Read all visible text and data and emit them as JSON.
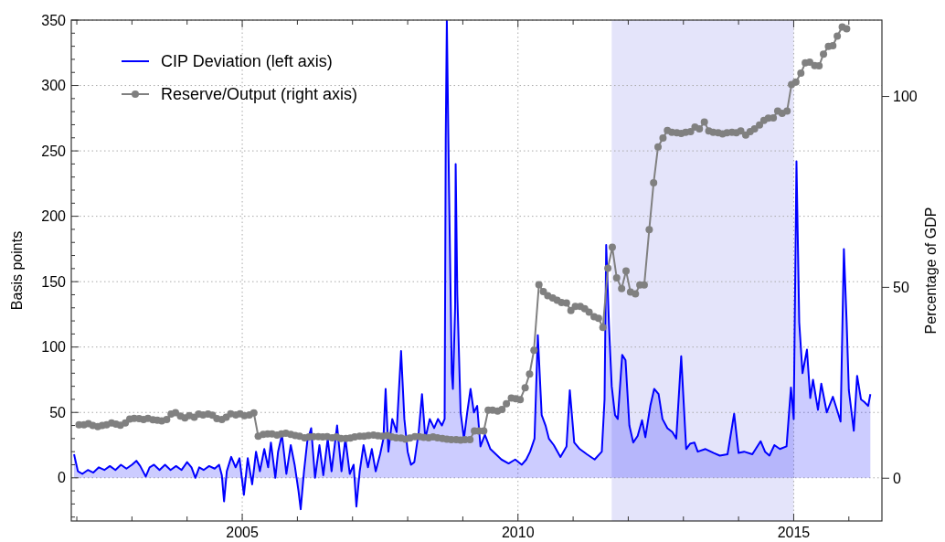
{
  "chart_data": {
    "type": "line",
    "xlabel": null,
    "ylabel": "Basis points",
    "y2label": "Percentage of GDP",
    "xlim": [
      2001.9,
      2016.6
    ],
    "ylim": [
      -33,
      350
    ],
    "y2lim": [
      -11.2,
      120
    ],
    "xticks": [
      {
        "value": 2002,
        "label": null
      },
      {
        "value": 2003,
        "label": null
      },
      {
        "value": 2004,
        "label": null
      },
      2005,
      {
        "value": 2006,
        "label": null
      },
      {
        "value": 2007,
        "label": null
      },
      {
        "value": 2008,
        "label": null
      },
      {
        "value": 2009,
        "label": null
      },
      2010,
      {
        "value": 2011,
        "label": null
      },
      {
        "value": 2012,
        "label": null
      },
      {
        "value": 2013,
        "label": null
      },
      {
        "value": 2014,
        "label": null
      },
      2015,
      {
        "value": 2016,
        "label": null
      }
    ],
    "yticks": [
      {
        "value": -30,
        "label": null
      },
      {
        "value": -20,
        "label": null
      },
      {
        "value": -10,
        "label": null
      },
      0,
      {
        "value": 10,
        "label": null
      },
      {
        "value": 20,
        "label": null
      },
      {
        "value": 30,
        "label": null
      },
      {
        "value": 40,
        "label": null
      },
      50,
      {
        "value": 60,
        "label": null
      },
      {
        "value": 70,
        "label": null
      },
      {
        "value": 80,
        "label": null
      },
      {
        "value": 90,
        "label": null
      },
      100,
      {
        "value": 110,
        "label": null
      },
      {
        "value": 120,
        "label": null
      },
      {
        "value": 130,
        "label": null
      },
      {
        "value": 140,
        "label": null
      },
      150,
      {
        "value": 160,
        "label": null
      },
      {
        "value": 170,
        "label": null
      },
      {
        "value": 180,
        "label": null
      },
      {
        "value": 190,
        "label": null
      },
      200,
      {
        "value": 210,
        "label": null
      },
      {
        "value": 220,
        "label": null
      },
      {
        "value": 230,
        "label": null
      },
      {
        "value": 240,
        "label": null
      },
      250,
      {
        "value": 260,
        "label": null
      },
      {
        "value": 270,
        "label": null
      },
      {
        "value": 280,
        "label": null
      },
      {
        "value": 290,
        "label": null
      },
      300,
      {
        "value": 310,
        "label": null
      },
      {
        "value": 320,
        "label": null
      },
      {
        "value": 330,
        "label": null
      },
      {
        "value": 340,
        "label": null
      },
      350
    ],
    "y2ticks": [
      0,
      50,
      100
    ],
    "grid": true,
    "legend": "top left",
    "bands": [
      {
        "axis": "x",
        "from": 2011.7,
        "to": 2015.0,
        "color": "#e4e4fa"
      }
    ],
    "series": [
      {
        "name": "CIP Deviation (left axis)",
        "type": "area",
        "color": "#0000ff",
        "x": [
          2001.95,
          2002.02,
          2002.1,
          2002.2,
          2002.3,
          2002.4,
          2002.5,
          2002.6,
          2002.7,
          2002.8,
          2002.9,
          2003.0,
          2003.08,
          2003.15,
          2003.25,
          2003.32,
          2003.4,
          2003.5,
          2003.6,
          2003.7,
          2003.8,
          2003.9,
          2004.0,
          2004.08,
          2004.15,
          2004.22,
          2004.3,
          2004.4,
          2004.5,
          2004.58,
          2004.63,
          2004.67,
          2004.72,
          2004.8,
          2004.88,
          2004.95,
          2005.03,
          2005.1,
          2005.18,
          2005.25,
          2005.32,
          2005.4,
          2005.47,
          2005.52,
          2005.6,
          2005.65,
          2005.72,
          2005.8,
          2005.88,
          2005.95,
          2006.02,
          2006.06,
          2006.12,
          2006.18,
          2006.25,
          2006.32,
          2006.4,
          2006.47,
          2006.55,
          2006.62,
          2006.72,
          2006.8,
          2006.87,
          2006.95,
          2007.02,
          2007.07,
          2007.13,
          2007.2,
          2007.28,
          2007.35,
          2007.42,
          2007.5,
          2007.56,
          2007.6,
          2007.65,
          2007.72,
          2007.8,
          2007.88,
          2007.94,
          2008.0,
          2008.06,
          2008.12,
          2008.2,
          2008.26,
          2008.32,
          2008.4,
          2008.48,
          2008.55,
          2008.62,
          2008.67,
          2008.69,
          2008.71,
          2008.75,
          2008.8,
          2008.82,
          2008.86,
          2008.87,
          2008.9,
          2008.96,
          2009.02,
          2009.08,
          2009.14,
          2009.2,
          2009.26,
          2009.32,
          2009.4,
          2009.5,
          2009.6,
          2009.7,
          2009.83,
          2009.95,
          2010.07,
          2010.15,
          2010.22,
          2010.3,
          2010.36,
          2010.43,
          2010.5,
          2010.56,
          2010.65,
          2010.77,
          2010.88,
          2010.94,
          2011.02,
          2011.12,
          2011.25,
          2011.39,
          2011.52,
          2011.57,
          2011.6,
          2011.65,
          2011.7,
          2011.76,
          2011.81,
          2011.89,
          2011.95,
          2012.02,
          2012.09,
          2012.17,
          2012.25,
          2012.31,
          2012.4,
          2012.47,
          2012.55,
          2012.62,
          2012.71,
          2012.8,
          2012.87,
          2012.96,
          2013.05,
          2013.12,
          2013.2,
          2013.26,
          2013.4,
          2013.55,
          2013.66,
          2013.8,
          2013.92,
          2014.0,
          2014.1,
          2014.25,
          2014.4,
          2014.48,
          2014.56,
          2014.65,
          2014.75,
          2014.87,
          2014.95,
          2015.0,
          2015.05,
          2015.1,
          2015.16,
          2015.24,
          2015.3,
          2015.35,
          2015.44,
          2015.5,
          2015.6,
          2015.71,
          2015.8,
          2015.85,
          2015.91,
          2015.96,
          2016.0,
          2016.09,
          2016.15,
          2016.22,
          2016.28,
          2016.35,
          2016.39
        ],
        "values": [
          18,
          5,
          3,
          6,
          4,
          8,
          6,
          9,
          6,
          10,
          7,
          10,
          13,
          9,
          1,
          8,
          10,
          6,
          10,
          6,
          9,
          6,
          12,
          8,
          0,
          8,
          6,
          9,
          7,
          10,
          2,
          -18,
          5,
          16,
          8,
          15,
          -13,
          15,
          -5,
          20,
          5,
          22,
          8,
          27,
          0,
          20,
          33,
          3,
          25,
          10,
          -10,
          -24,
          5,
          28,
          38,
          0,
          25,
          2,
          30,
          5,
          40,
          5,
          30,
          3,
          10,
          -22,
          5,
          25,
          8,
          22,
          5,
          18,
          30,
          68,
          20,
          45,
          35,
          97,
          45,
          20,
          10,
          12,
          35,
          64,
          30,
          45,
          38,
          45,
          40,
          45,
          258,
          350,
          220,
          80,
          68,
          130,
          240,
          140,
          50,
          30,
          50,
          68,
          50,
          55,
          24,
          33,
          22,
          18,
          14,
          11,
          14,
          10,
          14,
          20,
          30,
          109,
          48,
          40,
          30,
          25,
          16,
          24,
          67,
          27,
          22,
          18,
          14,
          20,
          60,
          178,
          117,
          70,
          48,
          45,
          94,
          90,
          40,
          27,
          32,
          44,
          31,
          55,
          68,
          64,
          45,
          38,
          35,
          30,
          93,
          22,
          26,
          27,
          20,
          22,
          19,
          17,
          18,
          49,
          19,
          20,
          18,
          28,
          20,
          17,
          25,
          22,
          24,
          69,
          45,
          242,
          119,
          80,
          98,
          61,
          75,
          52,
          72,
          50,
          62,
          50,
          43,
          175,
          119,
          67,
          36,
          78,
          60,
          58,
          55,
          64
        ]
      },
      {
        "name": "Reserve/Output (right axis)",
        "axis": "y2",
        "color": "#808080",
        "marker": "circle",
        "x": [
          2002.04,
          2002.13,
          2002.21,
          2002.29,
          2002.38,
          2002.46,
          2002.54,
          2002.63,
          2002.71,
          2002.79,
          2002.88,
          2002.96,
          2003.04,
          2003.13,
          2003.21,
          2003.29,
          2003.38,
          2003.46,
          2003.54,
          2003.63,
          2003.71,
          2003.79,
          2003.88,
          2003.96,
          2004.04,
          2004.13,
          2004.21,
          2004.29,
          2004.38,
          2004.46,
          2004.54,
          2004.63,
          2004.71,
          2004.79,
          2004.88,
          2004.96,
          2005.04,
          2005.13,
          2005.21,
          2005.29,
          2005.38,
          2005.46,
          2005.54,
          2005.63,
          2005.71,
          2005.79,
          2005.88,
          2005.96,
          2006.04,
          2006.13,
          2006.21,
          2006.29,
          2006.38,
          2006.46,
          2006.54,
          2006.63,
          2006.71,
          2006.79,
          2006.88,
          2006.96,
          2007.04,
          2007.13,
          2007.21,
          2007.29,
          2007.38,
          2007.46,
          2007.54,
          2007.63,
          2007.71,
          2007.79,
          2007.88,
          2007.96,
          2008.04,
          2008.13,
          2008.21,
          2008.29,
          2008.38,
          2008.46,
          2008.54,
          2008.63,
          2008.71,
          2008.79,
          2008.88,
          2008.96,
          2009.04,
          2009.13,
          2009.21,
          2009.29,
          2009.38,
          2009.46,
          2009.54,
          2009.63,
          2009.71,
          2009.79,
          2009.88,
          2009.96,
          2010.04,
          2010.13,
          2010.21,
          2010.29,
          2010.38,
          2010.46,
          2010.54,
          2010.63,
          2010.71,
          2010.79,
          2010.88,
          2010.96,
          2011.04,
          2011.13,
          2011.21,
          2011.29,
          2011.38,
          2011.46,
          2011.54,
          2011.63,
          2011.71,
          2011.79,
          2011.88,
          2011.96,
          2012.04,
          2012.13,
          2012.21,
          2012.29,
          2012.38,
          2012.46,
          2012.54,
          2012.63,
          2012.71,
          2012.79,
          2012.88,
          2012.96,
          2013.04,
          2013.13,
          2013.21,
          2013.29,
          2013.38,
          2013.46,
          2013.54,
          2013.63,
          2013.71,
          2013.79,
          2013.88,
          2013.96,
          2014.04,
          2014.13,
          2014.21,
          2014.29,
          2014.38,
          2014.46,
          2014.54,
          2014.63,
          2014.71,
          2014.79,
          2014.88,
          2014.96,
          2015.04,
          2015.13,
          2015.21,
          2015.29,
          2015.38,
          2015.46,
          2015.54,
          2015.63,
          2015.71,
          2015.79,
          2015.88,
          2015.96
        ],
        "values": [
          14,
          14,
          14.3,
          13.8,
          13.5,
          13.8,
          14,
          14.5,
          14.2,
          13.9,
          14.5,
          15.5,
          15.7,
          15.6,
          15.4,
          15.7,
          15.3,
          15.2,
          15.0,
          15.4,
          16.8,
          17.2,
          16.3,
          15.8,
          16.4,
          16.0,
          16.8,
          16.6,
          16.8,
          16.5,
          15.6,
          15.4,
          16.0,
          16.9,
          16.6,
          16.9,
          16.4,
          16.6,
          17.1,
          11.0,
          11.5,
          11.6,
          11.6,
          11.3,
          11.6,
          11.8,
          11.5,
          11.2,
          11.0,
          10.6,
          10.8,
          10.9,
          10.9,
          10.8,
          10.9,
          10.6,
          10.8,
          10.4,
          10.4,
          10.5,
          10.8,
          11.0,
          11.0,
          11.2,
          11.3,
          11.1,
          11.0,
          11.2,
          10.8,
          10.6,
          10.5,
          10.2,
          10.5,
          10.9,
          10.9,
          10.7,
          10.6,
          10.8,
          10.6,
          10.4,
          10.2,
          10.1,
          10.1,
          10.0,
          10.1,
          10.1,
          12.4,
          12.4,
          12.4,
          17.8,
          17.8,
          17.6,
          18,
          19.5,
          21,
          20.8,
          20.6,
          23.7,
          27.3,
          33.5,
          50.7,
          48.9,
          47.8,
          47.2,
          46.6,
          46,
          45.9,
          43.9,
          45,
          45,
          44.4,
          43.5,
          42.3,
          41.9,
          39.5,
          55,
          60.5,
          52.5,
          49.7,
          54.3,
          48.8,
          48.3,
          50.6,
          50.6,
          65.1,
          77.4,
          86.8,
          89.1,
          91.1,
          90.6,
          90.5,
          90.3,
          90.6,
          90.8,
          92,
          91.5,
          93.3,
          91,
          90.6,
          90.5,
          90.2,
          90.5,
          90.6,
          90.5,
          91,
          89.9,
          90.8,
          91.5,
          92.5,
          93.7,
          94.3,
          94.4,
          96.2,
          95.6,
          96.2,
          103.1,
          103.8,
          106.1,
          108.8,
          109,
          108.1,
          108,
          111.1,
          113.1,
          113.3,
          115.8,
          118.2,
          117.7
        ]
      }
    ]
  }
}
